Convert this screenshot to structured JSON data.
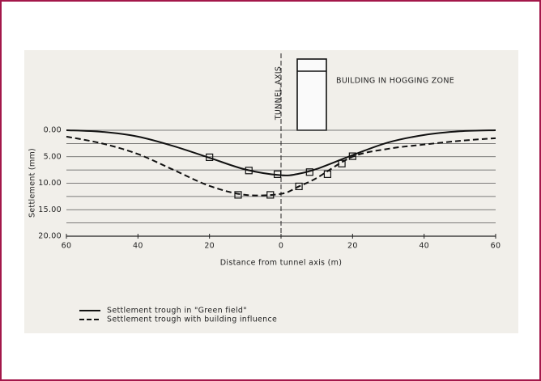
{
  "chart_data": {
    "type": "line",
    "x_label": "Distance from tunnel axis (m)",
    "y_label": "Settlement (mm)",
    "annotations": {
      "tunnel_axis": "TUNNEL AXIS",
      "building": "BUILDING IN HOGGING ZONE"
    },
    "xlim": [
      -60,
      60
    ],
    "xticks": [
      {
        "value": -60,
        "label": "60"
      },
      {
        "value": -40,
        "label": "40"
      },
      {
        "value": -20,
        "label": "20"
      },
      0,
      {
        "value": 20,
        "label": "20"
      },
      {
        "value": 40,
        "label": "40"
      },
      {
        "value": 60,
        "label": "60"
      }
    ],
    "ylim": [
      0,
      20
    ],
    "y_inverted": true,
    "yticks": [
      {
        "value": 0,
        "label": "0.00"
      },
      {
        "value": 5,
        "label": "5.00"
      },
      {
        "value": 10,
        "label": "10.00"
      },
      {
        "value": 15,
        "label": "15.00"
      },
      {
        "value": 20,
        "label": "20.00"
      }
    ],
    "y_minor_ticks": [
      2.5,
      7.5,
      12.5,
      17.5
    ],
    "grid": true,
    "legend": "bottom-left",
    "series": [
      {
        "name": "Settlement trough in \"Green field\"",
        "color": "#111111",
        "dash": "solid",
        "x": [
          -60,
          -50,
          -40,
          -30,
          -20,
          -10,
          0,
          5,
          10,
          20,
          30,
          40,
          50,
          60
        ],
        "values": [
          0.0,
          0.3,
          1.2,
          3.0,
          5.2,
          7.4,
          8.5,
          8.2,
          7.3,
          4.7,
          2.3,
          0.9,
          0.2,
          0.0
        ],
        "markers": {
          "x": [
            -20,
            -9,
            -1,
            8,
            20
          ],
          "values": [
            5.1,
            7.6,
            8.3,
            7.9,
            4.9
          ]
        }
      },
      {
        "name": "Settlement trough with building influence",
        "color": "#111111",
        "dash": "dashed",
        "x": [
          -60,
          -50,
          -40,
          -30,
          -20,
          -10,
          0,
          5,
          10,
          20,
          30,
          40,
          50,
          60
        ],
        "values": [
          1.2,
          2.5,
          4.5,
          7.5,
          10.5,
          12.2,
          12.0,
          10.6,
          9.0,
          5.0,
          3.5,
          2.7,
          2.0,
          1.5
        ],
        "markers": {
          "x": [
            -12,
            -3,
            5,
            13,
            17
          ],
          "values": [
            12.2,
            12.2,
            10.6,
            8.3,
            6.3
          ]
        }
      }
    ]
  }
}
